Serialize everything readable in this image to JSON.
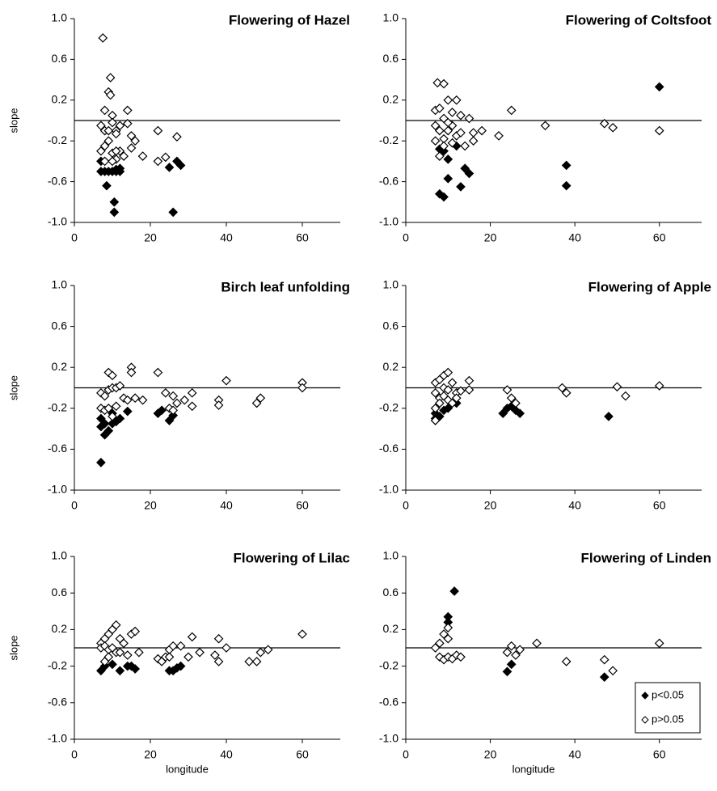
{
  "chart_data": [
    {
      "type": "scatter",
      "title": "Flowering of Hazel",
      "ylabel": "slope",
      "xlim": [
        0,
        70
      ],
      "ylim": [
        -1,
        1
      ],
      "xticks": [
        0,
        20,
        40,
        60
      ],
      "yticks": [
        {
          "value": 1,
          "label": "1.0"
        },
        0.6,
        0.2,
        -0.2,
        -0.6,
        {
          "value": -1,
          "label": "-1.0"
        }
      ],
      "hline": 0,
      "series": [
        {
          "marker": "filled",
          "color": "#000000",
          "x": [
            7,
            7,
            8,
            9,
            10,
            11,
            12,
            12,
            8.5,
            10.5,
            10.5,
            25,
            26,
            27,
            28,
            11
          ],
          "values": [
            -0.4,
            -0.5,
            -0.5,
            -0.5,
            -0.5,
            -0.5,
            -0.5,
            -0.47,
            -0.64,
            -0.8,
            -0.9,
            -0.46,
            -0.9,
            -0.4,
            -0.44,
            -0.48
          ]
        },
        {
          "marker": "open",
          "color": "#000000",
          "x": [
            7.5,
            9.5,
            9,
            9.5,
            8,
            10,
            14,
            7,
            8,
            9,
            10,
            11,
            11,
            12,
            14,
            15,
            16,
            15,
            13,
            7,
            8,
            9,
            10,
            11,
            12,
            18,
            22,
            22,
            24,
            27,
            8,
            10,
            11
          ],
          "values": [
            0.81,
            0.42,
            0.28,
            0.25,
            0.1,
            0.05,
            0.1,
            -0.05,
            -0.1,
            -0.1,
            -0.02,
            -0.1,
            -0.13,
            -0.05,
            -0.03,
            -0.15,
            -0.2,
            -0.27,
            -0.35,
            -0.3,
            -0.25,
            -0.2,
            -0.32,
            -0.38,
            -0.3,
            -0.35,
            -0.1,
            -0.4,
            -0.36,
            -0.16,
            -0.4,
            -0.4,
            -0.3
          ]
        }
      ]
    },
    {
      "type": "scatter",
      "title": "Flowering of Coltsfoot",
      "xlim": [
        0,
        70
      ],
      "ylim": [
        -1,
        1
      ],
      "xticks": [
        0,
        20,
        40,
        60
      ],
      "yticks": [
        {
          "value": 1,
          "label": "1.0"
        },
        0.6,
        0.2,
        -0.2,
        -0.6,
        {
          "value": -1,
          "label": "-1.0"
        }
      ],
      "hline": 0,
      "series": [
        {
          "marker": "filled",
          "color": "#000000",
          "x": [
            60,
            8,
            9,
            10,
            12,
            14,
            15,
            10,
            13,
            8,
            9,
            38,
            38
          ],
          "values": [
            0.33,
            -0.28,
            -0.3,
            -0.38,
            -0.25,
            -0.47,
            -0.52,
            -0.57,
            -0.65,
            -0.72,
            -0.75,
            -0.44,
            -0.64
          ]
        },
        {
          "marker": "open",
          "color": "#000000",
          "x": [
            7.5,
            9,
            7,
            8,
            9,
            10,
            11,
            12,
            13,
            15,
            25,
            33,
            47,
            49,
            60,
            7,
            8,
            9,
            10,
            11,
            12,
            14,
            16,
            16,
            18,
            22,
            7,
            8,
            9,
            11,
            13,
            10
          ],
          "values": [
            0.37,
            0.36,
            0.1,
            0.12,
            0.02,
            0.2,
            0.08,
            0.2,
            0.05,
            0.02,
            0.1,
            -0.05,
            -0.03,
            -0.07,
            -0.1,
            -0.05,
            -0.1,
            -0.18,
            -0.1,
            -0.05,
            -0.15,
            -0.25,
            -0.2,
            -0.12,
            -0.1,
            -0.15,
            -0.2,
            -0.35,
            -0.25,
            -0.22,
            -0.12,
            -0.02
          ]
        }
      ]
    },
    {
      "type": "scatter",
      "title": "Birch leaf unfolding",
      "ylabel": "slope",
      "xlim": [
        0,
        70
      ],
      "ylim": [
        -1,
        1
      ],
      "xticks": [
        0,
        20,
        40,
        60
      ],
      "yticks": [
        {
          "value": 1,
          "label": "1.0"
        },
        0.6,
        0.2,
        -0.2,
        -0.6,
        {
          "value": -1,
          "label": "-1.0"
        }
      ],
      "hline": 0,
      "series": [
        {
          "marker": "filled",
          "color": "#000000",
          "x": [
            7,
            7,
            8,
            9,
            10,
            11,
            12,
            10,
            14,
            22,
            23,
            25,
            26,
            7,
            8
          ],
          "values": [
            -0.3,
            -0.38,
            -0.46,
            -0.42,
            -0.35,
            -0.33,
            -0.3,
            -0.25,
            -0.23,
            -0.25,
            -0.22,
            -0.32,
            -0.27,
            -0.73,
            -0.35
          ]
        },
        {
          "marker": "open",
          "color": "#000000",
          "x": [
            9,
            10,
            15,
            15,
            22,
            40,
            60,
            60,
            7,
            8,
            9,
            10,
            11,
            12,
            13,
            14,
            16,
            18,
            24,
            26,
            27,
            29,
            31,
            31,
            38,
            38,
            48,
            49,
            7,
            8,
            9,
            10,
            11,
            25,
            26
          ],
          "values": [
            0.15,
            0.12,
            0.2,
            0.15,
            0.15,
            0.07,
            0.05,
            0,
            -0.05,
            -0.08,
            -0.02,
            0,
            0,
            0.02,
            -0.1,
            -0.12,
            -0.1,
            -0.12,
            -0.05,
            -0.08,
            -0.15,
            -0.12,
            -0.05,
            -0.18,
            -0.12,
            -0.17,
            -0.15,
            -0.1,
            -0.2,
            -0.22,
            -0.2,
            -0.28,
            -0.18,
            -0.2,
            -0.22
          ]
        }
      ]
    },
    {
      "type": "scatter",
      "title": "Flowering of Apple",
      "xlim": [
        0,
        70
      ],
      "ylim": [
        -1,
        1
      ],
      "xticks": [
        0,
        20,
        40,
        60
      ],
      "yticks": [
        {
          "value": 1,
          "label": "1.0"
        },
        0.6,
        0.2,
        -0.2,
        -0.6,
        {
          "value": -1,
          "label": "-1.0"
        }
      ],
      "hline": 0,
      "series": [
        {
          "marker": "filled",
          "color": "#000000",
          "x": [
            7,
            7,
            8,
            9,
            10,
            12,
            23,
            24,
            25,
            27,
            48,
            26
          ],
          "values": [
            -0.25,
            -0.3,
            -0.28,
            -0.22,
            -0.2,
            -0.15,
            -0.25,
            -0.2,
            -0.18,
            -0.25,
            -0.28,
            -0.22
          ]
        },
        {
          "marker": "open",
          "color": "#000000",
          "x": [
            7,
            8,
            9,
            10,
            9,
            10,
            11,
            12,
            13,
            15,
            15,
            7,
            8,
            9,
            10,
            11,
            12,
            7,
            8,
            24,
            25,
            26,
            37,
            38,
            50,
            52,
            60,
            7
          ],
          "values": [
            0.05,
            0.08,
            0.12,
            0.15,
            0,
            -0.02,
            0.05,
            -0.05,
            -0.03,
            0.07,
            -0.02,
            -0.05,
            -0.1,
            -0.08,
            -0.12,
            -0.15,
            -0.1,
            -0.2,
            -0.15,
            -0.02,
            -0.1,
            -0.15,
            0,
            -0.05,
            0.01,
            -0.08,
            0.02,
            -0.32
          ]
        }
      ]
    },
    {
      "type": "scatter",
      "title": "Flowering of Lilac",
      "ylabel": "slope",
      "xlabel": "longitude",
      "xlim": [
        0,
        70
      ],
      "ylim": [
        -1,
        1
      ],
      "xticks": [
        0,
        20,
        40,
        60
      ],
      "yticks": [
        {
          "value": 1,
          "label": "1.0"
        },
        0.6,
        0.2,
        -0.2,
        -0.6,
        {
          "value": -1,
          "label": "-1.0"
        }
      ],
      "hline": 0,
      "series": [
        {
          "marker": "filled",
          "color": "#000000",
          "x": [
            7,
            12,
            15,
            16,
            25,
            26,
            27,
            8,
            10,
            14,
            28
          ],
          "values": [
            -0.25,
            -0.25,
            -0.2,
            -0.23,
            -0.25,
            -0.25,
            -0.22,
            -0.2,
            -0.18,
            -0.2,
            -0.2
          ]
        },
        {
          "marker": "open",
          "color": "#000000",
          "x": [
            7,
            8,
            9,
            10,
            11,
            15,
            16,
            31,
            38,
            60,
            7,
            8,
            9,
            10,
            11,
            12,
            13,
            14,
            17,
            22,
            23,
            24,
            25,
            26,
            28,
            30,
            33,
            37,
            38,
            40,
            46,
            48,
            49,
            51,
            8,
            9,
            12,
            25
          ],
          "values": [
            0.05,
            0.1,
            0.15,
            0.2,
            0.25,
            0.15,
            0.18,
            0.12,
            0.1,
            0.15,
            0,
            0.02,
            -0.02,
            0,
            -0.05,
            -0.05,
            0.05,
            -0.08,
            -0.05,
            -0.12,
            -0.15,
            -0.1,
            -0.02,
            0.02,
            0.02,
            -0.1,
            -0.05,
            -0.08,
            -0.15,
            0,
            -0.15,
            -0.15,
            -0.05,
            -0.02,
            -0.15,
            -0.1,
            0.1,
            -0.1
          ]
        }
      ]
    },
    {
      "type": "scatter",
      "title": "Flowering of Linden",
      "xlabel": "longitude",
      "xlim": [
        0,
        70
      ],
      "ylim": [
        -1,
        1
      ],
      "xticks": [
        0,
        20,
        40,
        60
      ],
      "yticks": [
        {
          "value": 1,
          "label": "1.0"
        },
        0.6,
        0.2,
        -0.2,
        -0.6,
        {
          "value": -1,
          "label": "-1.0"
        }
      ],
      "hline": 0,
      "legend": "lower right",
      "series": [
        {
          "name": "p<0.05",
          "marker": "filled",
          "color": "#000000",
          "x": [
            11.5,
            10,
            10,
            24,
            25,
            47
          ],
          "values": [
            0.62,
            0.34,
            0.28,
            -0.26,
            -0.18,
            -0.32
          ]
        },
        {
          "name": "p>0.05",
          "marker": "open",
          "color": "#000000",
          "x": [
            8,
            9,
            10,
            10,
            7,
            8,
            9,
            10,
            11,
            12,
            13,
            24,
            25,
            26,
            27,
            31,
            38,
            47,
            49,
            60
          ],
          "values": [
            0.05,
            0.15,
            0.22,
            0.1,
            0,
            -0.1,
            -0.13,
            -0.1,
            -0.12,
            -0.08,
            -0.1,
            -0.05,
            0.02,
            -0.08,
            -0.02,
            0.05,
            -0.15,
            -0.13,
            -0.25,
            0.05
          ]
        }
      ]
    }
  ]
}
